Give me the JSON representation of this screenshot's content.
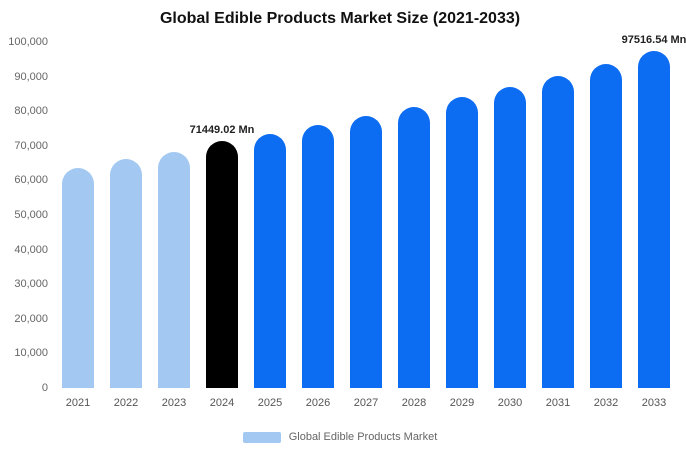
{
  "title": "Global Edible Products Market Size (2021-2033)",
  "legend": {
    "label": "Global Edible Products Market"
  },
  "colors": {
    "light_blue": "#a3c9f2",
    "blue": "#0c6cf2",
    "black": "#000000",
    "title_text": "#111111",
    "axis_text": "#666666"
  },
  "chart_data": {
    "type": "bar",
    "title": "Global Edible Products Market Size (2021-2033)",
    "categories": [
      "2021",
      "2022",
      "2023",
      "2024",
      "2025",
      "2026",
      "2027",
      "2028",
      "2029",
      "2030",
      "2031",
      "2032",
      "2033"
    ],
    "values": [
      63500,
      66200,
      68200,
      71449.02,
      73500,
      76000,
      78600,
      81300,
      84100,
      87000,
      90100,
      93600,
      97516.54
    ],
    "unit": "Mn",
    "xlabel": "",
    "ylabel": "",
    "ylim": [
      0,
      100000
    ],
    "yticks": [
      0,
      10000,
      20000,
      30000,
      40000,
      50000,
      60000,
      70000,
      80000,
      90000,
      100000
    ],
    "ytick_labels": [
      "0",
      "10,000",
      "20,000",
      "30,000",
      "40,000",
      "50,000",
      "60,000",
      "70,000",
      "80,000",
      "90,000",
      "100,000"
    ],
    "bar_colors": [
      "light",
      "light",
      "light",
      "black",
      "blue",
      "blue",
      "blue",
      "blue",
      "blue",
      "blue",
      "blue",
      "blue",
      "blue"
    ],
    "annotations": [
      {
        "category": "2024",
        "text": "71449.02 Mn"
      },
      {
        "category": "2033",
        "text": "97516.54 Mn"
      }
    ],
    "grid": false,
    "legend_position": "bottom",
    "legend_entries": [
      "Global Edible Products Market"
    ]
  }
}
